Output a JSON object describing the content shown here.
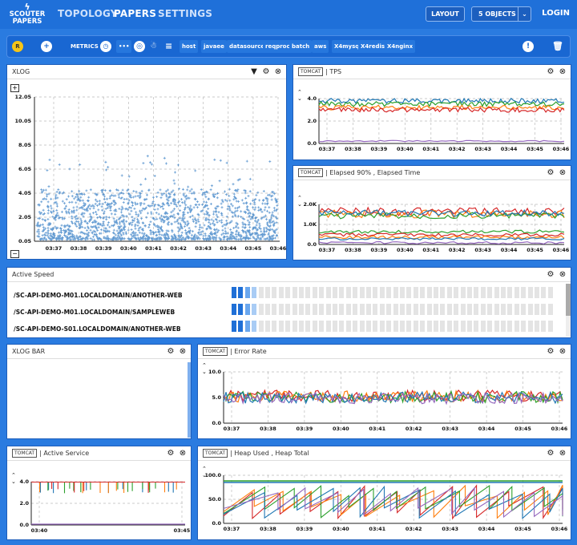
{
  "nav": {
    "logo_line1": "SCOUTER",
    "logo_line2": "PAPERS",
    "topology": "TOPOLOGY",
    "papers": "PAPERS",
    "settings": "SETTINGS",
    "layout": "LAYOUT",
    "objects": "5 OBJECTS",
    "login": "LOGIN"
  },
  "toolbar": {
    "metrics": "METRICS",
    "ellipsis": "•••",
    "items": [
      "host",
      "javaee",
      "datasource",
      "reqproc",
      "batch",
      "aws",
      "X4mysql",
      "X4redis",
      "X4nginx"
    ]
  },
  "xlog": {
    "title": "XLOG",
    "yticks": [
      "12.05",
      "10.05",
      "8.05",
      "6.05",
      "4.05",
      "2.05",
      "0.05"
    ],
    "xticks": [
      "03:37",
      "03:38",
      "03:39",
      "03:40",
      "03:41",
      "03:42",
      "03:43",
      "03:44",
      "03:45",
      "03:46"
    ]
  },
  "tps": {
    "tag": "TOMCAT",
    "title": "TPS",
    "yticks": [
      "4.0",
      "2.0",
      "0.0"
    ],
    "xticks": [
      "03:37",
      "03:38",
      "03:39",
      "03:40",
      "03:41",
      "03:42",
      "03:43",
      "03:44",
      "03:45",
      "03:46"
    ]
  },
  "elapsed": {
    "tag": "TOMCAT",
    "title": "Elapsed 90% , Elapsed Time",
    "yticks": [
      "2.0K",
      "1.0K",
      "0.0"
    ],
    "xticks": [
      "03:37",
      "03:38",
      "03:39",
      "03:40",
      "03:41",
      "03:42",
      "03:43",
      "03:44",
      "03:45",
      "03:46"
    ]
  },
  "active_speed": {
    "title": "Active Speed",
    "rows": [
      "/SC-API-DEMO-M01.LOCALDOMAIN/ANOTHER-WEB",
      "/SC-API-DEMO-M01.LOCALDOMAIN/SAMPLEWEB",
      "/SC-API-DEMO-S01.LOCALDOMAIN/ANOTHER-WEB"
    ]
  },
  "xlogbar": {
    "title": "XLOG BAR"
  },
  "error": {
    "tag": "TOMCAT",
    "title": "Error Rate",
    "yticks": [
      "10.0",
      "5.0",
      "0.0"
    ],
    "xticks": [
      "03:37",
      "03:38",
      "03:39",
      "03:40",
      "03:41",
      "03:42",
      "03:43",
      "03:44",
      "03:45",
      "03:46"
    ]
  },
  "active_service": {
    "tag": "TOMCAT",
    "title": "Active Service",
    "yticks": [
      "4.0",
      "2.0",
      "0.0"
    ],
    "xticks": [
      "03:40",
      "03:45"
    ]
  },
  "heap": {
    "tag": "TOMCAT",
    "title": "Heap Used , Heap Total",
    "yticks": [
      "100.0",
      "50.0",
      "0.0"
    ],
    "xticks": [
      "03:37",
      "03:38",
      "03:39",
      "03:40",
      "03:41",
      "03:42",
      "03:43",
      "03:44",
      "03:45",
      "03:46"
    ]
  },
  "colors": {
    "bg": "#2a7be0",
    "blue": "#1f77b4",
    "orange": "#ff7f0e",
    "green": "#2ca02c",
    "red": "#d62728",
    "purple": "#9467bd"
  }
}
